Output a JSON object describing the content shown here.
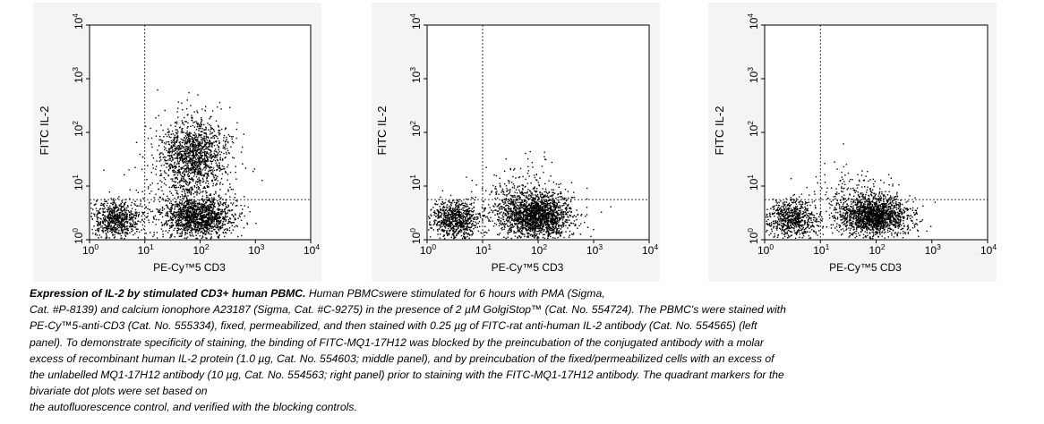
{
  "chart_data": [
    {
      "type": "scatter",
      "panel": "left",
      "xlabel": "PE-Cy™5 CD3",
      "ylabel": "FITC IL-2",
      "x_scale": "log",
      "y_scale": "log",
      "xlim": [
        1,
        10000
      ],
      "ylim": [
        1,
        10000
      ],
      "x_ticks": [
        {
          "base": "10",
          "exp": "0",
          "value": 1
        },
        {
          "base": "10",
          "exp": "1",
          "value": 10
        },
        {
          "base": "10",
          "exp": "2",
          "value": 100
        },
        {
          "base": "10",
          "exp": "3",
          "value": 1000
        },
        {
          "base": "10",
          "exp": "4",
          "value": 10000
        }
      ],
      "y_ticks": [
        {
          "base": "10",
          "exp": "0",
          "value": 1
        },
        {
          "base": "10",
          "exp": "1",
          "value": 10
        },
        {
          "base": "10",
          "exp": "2",
          "value": 100
        },
        {
          "base": "10",
          "exp": "3",
          "value": 1000
        },
        {
          "base": "10",
          "exp": "4",
          "value": 10000
        }
      ],
      "quadrant_markers": {
        "x": 10,
        "y": 5.6
      },
      "populations": [
        {
          "center_x": 3,
          "center_y": 2.5,
          "spread_x_decades": 0.22,
          "spread_y_decades": 0.18,
          "count": 700
        },
        {
          "center_x": 90,
          "center_y": 2.7,
          "spread_x_decades": 0.32,
          "spread_y_decades": 0.18,
          "count": 1300
        },
        {
          "center_x": 75,
          "center_y": 40,
          "spread_x_decades": 0.3,
          "spread_y_decades": 0.35,
          "count": 1300
        },
        {
          "center_x": 60,
          "center_y": 6,
          "spread_x_decades": 0.45,
          "spread_y_decades": 0.5,
          "count": 350
        }
      ]
    },
    {
      "type": "scatter",
      "panel": "middle",
      "xlabel": "PE-Cy™5 CD3",
      "ylabel": "FITC IL-2",
      "x_scale": "log",
      "y_scale": "log",
      "xlim": [
        1,
        10000
      ],
      "ylim": [
        1,
        10000
      ],
      "x_ticks": [
        {
          "base": "10",
          "exp": "0",
          "value": 1
        },
        {
          "base": "10",
          "exp": "1",
          "value": 10
        },
        {
          "base": "10",
          "exp": "2",
          "value": 100
        },
        {
          "base": "10",
          "exp": "3",
          "value": 1000
        },
        {
          "base": "10",
          "exp": "4",
          "value": 10000
        }
      ],
      "y_ticks": [
        {
          "base": "10",
          "exp": "0",
          "value": 1
        },
        {
          "base": "10",
          "exp": "1",
          "value": 10
        },
        {
          "base": "10",
          "exp": "2",
          "value": 100
        },
        {
          "base": "10",
          "exp": "3",
          "value": 1000
        },
        {
          "base": "10",
          "exp": "4",
          "value": 10000
        }
      ],
      "quadrant_markers": {
        "x": 10,
        "y": 5.6
      },
      "populations": [
        {
          "center_x": 3,
          "center_y": 2.5,
          "spread_x_decades": 0.22,
          "spread_y_decades": 0.18,
          "count": 800
        },
        {
          "center_x": 90,
          "center_y": 2.8,
          "spread_x_decades": 0.32,
          "spread_y_decades": 0.2,
          "count": 1800
        },
        {
          "center_x": 50,
          "center_y": 6,
          "spread_x_decades": 0.4,
          "spread_y_decades": 0.3,
          "count": 300
        }
      ]
    },
    {
      "type": "scatter",
      "panel": "right",
      "xlabel": "PE-Cy™5 CD3",
      "ylabel": "FITC IL-2",
      "x_scale": "log",
      "y_scale": "log",
      "xlim": [
        1,
        10000
      ],
      "ylim": [
        1,
        10000
      ],
      "x_ticks": [
        {
          "base": "10",
          "exp": "0",
          "value": 1
        },
        {
          "base": "10",
          "exp": "1",
          "value": 10
        },
        {
          "base": "10",
          "exp": "2",
          "value": 100
        },
        {
          "base": "10",
          "exp": "3",
          "value": 1000
        },
        {
          "base": "10",
          "exp": "4",
          "value": 10000
        }
      ],
      "y_ticks": [
        {
          "base": "10",
          "exp": "0",
          "value": 1
        },
        {
          "base": "10",
          "exp": "1",
          "value": 10
        },
        {
          "base": "10",
          "exp": "2",
          "value": 100
        },
        {
          "base": "10",
          "exp": "3",
          "value": 1000
        },
        {
          "base": "10",
          "exp": "4",
          "value": 10000
        }
      ],
      "quadrant_markers": {
        "x": 10,
        "y": 5.6
      },
      "populations": [
        {
          "center_x": 3,
          "center_y": 2.5,
          "spread_x_decades": 0.22,
          "spread_y_decades": 0.18,
          "count": 700
        },
        {
          "center_x": 90,
          "center_y": 2.8,
          "spread_x_decades": 0.32,
          "spread_y_decades": 0.18,
          "count": 1600
        },
        {
          "center_x": 45,
          "center_y": 6,
          "spread_x_decades": 0.4,
          "spread_y_decades": 0.3,
          "count": 250
        }
      ]
    }
  ],
  "caption": {
    "bold_lead": "Expression of IL-2 by stimulated CD3+ human PBMC.",
    "lines": [
      " Human PBMCswere stimulated for 6 hours with PMA (Sigma,",
      "Cat. #P-8139) and calcium ionophore A23187 (Sigma, Cat. #C-9275) in the presence of 2 µM GolgiStop™ (Cat. No. 554724). The PBMC's were stained with",
      "PE-Cy™5-anti-CD3 (Cat. No. 555334), fixed, permeabilized, and then stained with 0.25 µg of FITC-rat anti-human IL-2 antibody (Cat. No. 554565) (left",
      "panel). To demonstrate specificity of staining, the binding of FITC-MQ1-17H12 was blocked by the preincubation of the conjugated antibody with a molar",
      "excess of recombinant human IL-2 protein (1.0 µg, Cat. No. 554603; middle panel), and by preincubation of the fixed/permeabilized cells with an excess of",
      "the unlabelled MQ1-17H12 antibody (10 µg, Cat. No. 554563; right panel) prior to staining with the FITC-MQ1-17H12 antibody. The quadrant markers for the",
      "bivariate dot plots were set based on",
      "the autofluorescence control, and verified with the blocking controls."
    ]
  }
}
